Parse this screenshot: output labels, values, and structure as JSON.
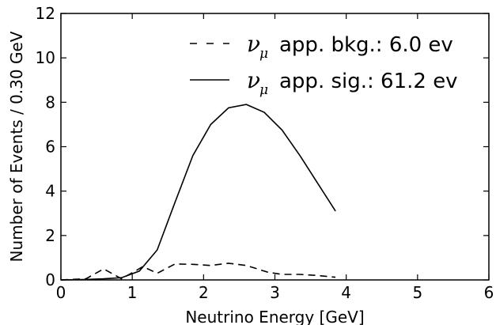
{
  "chart_data": {
    "type": "line",
    "xlabel": "Neutrino Energy [GeV]",
    "ylabel": "Number of Events / 0.30 GeV",
    "xlim": [
      0,
      6
    ],
    "ylim": [
      0,
      12
    ],
    "xticks": [
      "0",
      "1",
      "2",
      "3",
      "4",
      "5",
      "6"
    ],
    "yticks": [
      "0",
      "2",
      "4",
      "6",
      "8",
      "10",
      "12"
    ],
    "grid": false,
    "legend_position": "top-right",
    "series": [
      {
        "name": "app. bkg.: 6.0 ev",
        "symbol": "ν",
        "symbol_sub": "μ",
        "style": "dashed",
        "x": [
          0.0,
          0.35,
          0.6,
          0.85,
          1.15,
          1.35,
          1.6,
          1.85,
          2.1,
          2.35,
          2.6,
          2.9,
          3.1,
          3.35,
          3.6,
          3.85
        ],
        "y": [
          0.0,
          0.05,
          0.5,
          0.05,
          0.6,
          0.3,
          0.72,
          0.7,
          0.65,
          0.75,
          0.65,
          0.35,
          0.25,
          0.25,
          0.2,
          0.12
        ]
      },
      {
        "name": "app. sig.: 61.2 ev",
        "symbol": "ν",
        "symbol_sub": "μ",
        "style": "solid",
        "x": [
          0.0,
          0.35,
          0.6,
          0.85,
          1.1,
          1.35,
          1.6,
          1.85,
          2.1,
          2.35,
          2.6,
          2.85,
          3.1,
          3.35,
          3.6,
          3.85
        ],
        "y": [
          0.0,
          0.02,
          0.05,
          0.1,
          0.4,
          1.35,
          3.5,
          5.6,
          7.0,
          7.75,
          7.9,
          7.55,
          6.75,
          5.6,
          4.35,
          3.1
        ]
      }
    ]
  }
}
